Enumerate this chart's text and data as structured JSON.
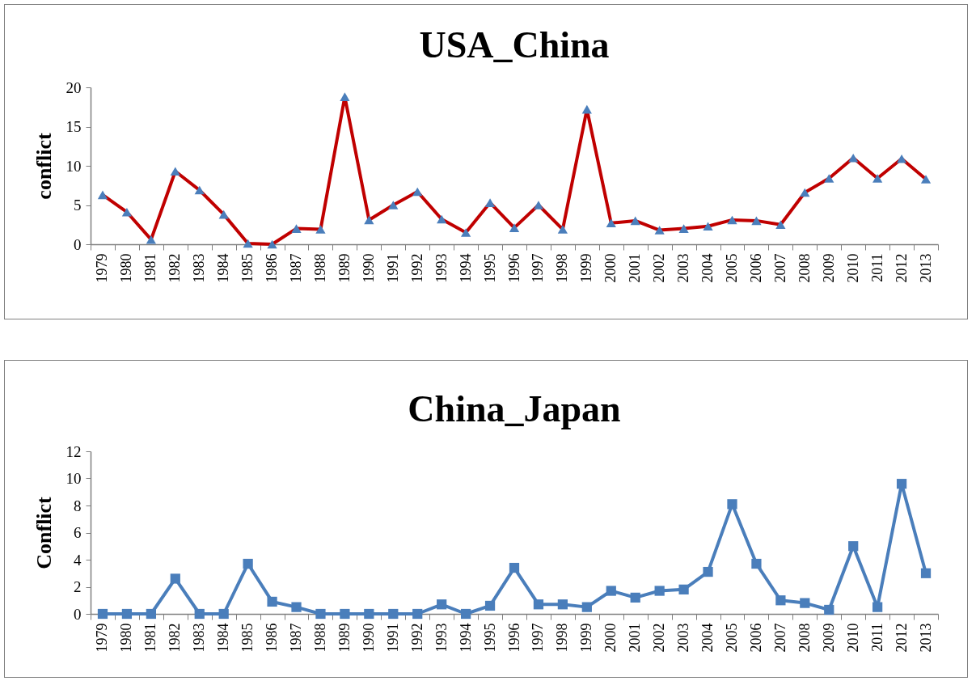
{
  "chart_data": [
    {
      "type": "line",
      "title": "USA_China",
      "ylabel": "conflict",
      "categories": [
        "1979",
        "1980",
        "1981",
        "1982",
        "1983",
        "1984",
        "1985",
        "1986",
        "1987",
        "1988",
        "1989",
        "1990",
        "1991",
        "1992",
        "1993",
        "1994",
        "1995",
        "1996",
        "1997",
        "1998",
        "1999",
        "2000",
        "2001",
        "2002",
        "2003",
        "2004",
        "2005",
        "2006",
        "2007",
        "2008",
        "2009",
        "2010",
        "2011",
        "2012",
        "2013"
      ],
      "series": [
        {
          "color": "#c00000",
          "colors": [
            "#4a7ebb",
            "#4a7ebb",
            "#4a7ebb",
            "#4a7ebb",
            "#4a7ebb",
            "#4a7ebb",
            "#4a7ebb",
            "#4a7ebb",
            "#4a7ebb",
            "#4a7ebb",
            "#4a7ebb",
            "#4a7ebb",
            "#4a7ebb",
            "#4a7ebb",
            "#4a7ebb",
            "#4a7ebb",
            "#4a7ebb",
            "#4a7ebb",
            "#4a7ebb",
            "#4a7ebb",
            "#4a7ebb",
            "#4a7ebb",
            "#4a7ebb",
            "#4a7ebb",
            "#4a7ebb",
            "#4a7ebb",
            "#4a7ebb",
            "#4a7ebb",
            "#4a7ebb",
            "#4a7ebb",
            "#4a7ebb",
            "#4a7ebb",
            "#4a7ebb",
            "#4a7ebb",
            "#4a7ebb"
          ],
          "values": [
            6.3,
            4.1,
            0.6,
            9.3,
            6.9,
            3.8,
            0.1,
            0,
            2.0,
            1.9,
            18.8,
            3.1,
            5.0,
            6.7,
            3.2,
            1.5,
            5.3,
            2.1,
            5.0,
            1.9,
            17.2,
            2.7,
            3.0,
            1.8,
            2.0,
            2.3,
            3.1,
            3.0,
            2.5,
            6.6,
            8.4,
            11.0,
            8.4,
            10.9,
            8.3
          ]
        }
      ],
      "ylim": [
        0,
        20
      ],
      "yticks": [
        0,
        5,
        10,
        15,
        20
      ],
      "grid": false,
      "marker": "triangle",
      "line_style": "solid"
    },
    {
      "type": "line",
      "title": "China_Japan",
      "ylabel": "Conflict",
      "categories": [
        "1979",
        "1980",
        "1981",
        "1982",
        "1983",
        "1984",
        "1985",
        "1986",
        "1987",
        "1988",
        "1989",
        "1990",
        "1991",
        "1992",
        "1993",
        "1994",
        "1995",
        "1996",
        "1997",
        "1998",
        "1999",
        "2000",
        "2001",
        "2002",
        "2003",
        "2004",
        "2005",
        "2006",
        "2007",
        "2008",
        "2009",
        "2010",
        "2011",
        "2012",
        "2013"
      ],
      "series": [
        {
          "color": "#4a7ebb",
          "values": [
            0,
            0,
            0,
            2.6,
            0,
            0,
            3.7,
            0.9,
            0.5,
            0,
            0,
            0,
            0,
            0,
            0.7,
            0,
            0.6,
            3.4,
            0.7,
            0.7,
            0.5,
            1.7,
            1.2,
            1.7,
            1.8,
            3.1,
            8.1,
            3.7,
            1.0,
            0.8,
            0.3,
            5.0,
            0.5,
            9.6,
            3.0
          ]
        }
      ],
      "ylim": [
        0,
        12
      ],
      "yticks": [
        0,
        2,
        4,
        6,
        8,
        10,
        12
      ],
      "grid": false,
      "marker": "square",
      "line_style": "solid"
    }
  ]
}
